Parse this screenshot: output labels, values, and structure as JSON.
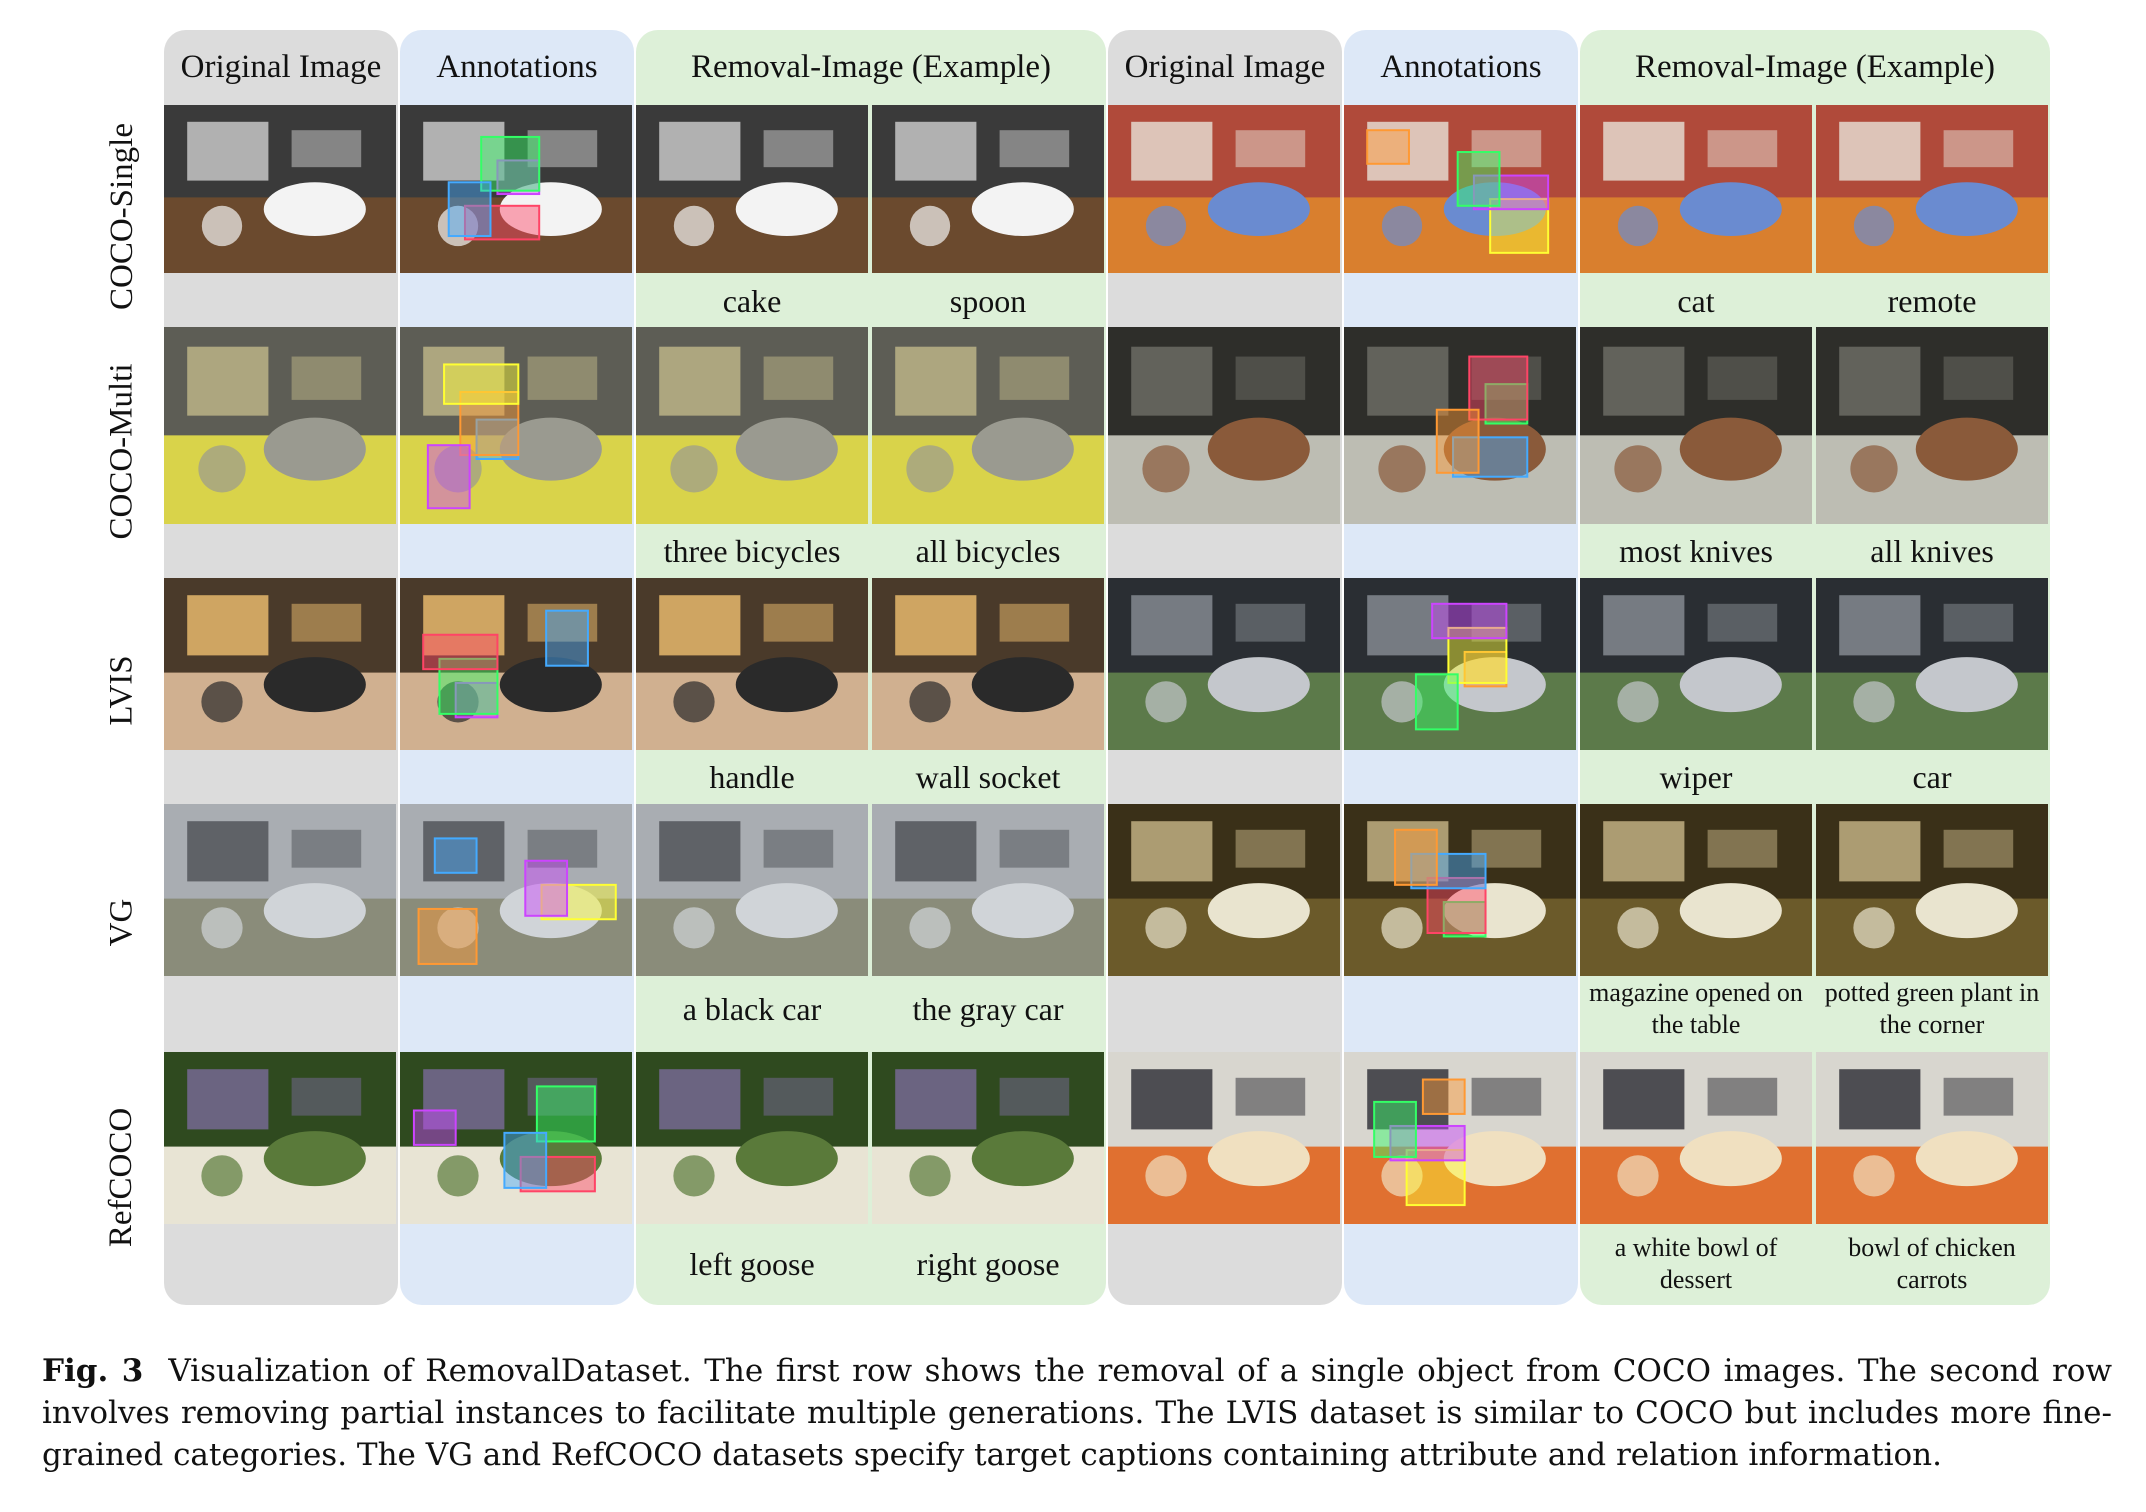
{
  "colors": {
    "original_bg": "#dcdcdc",
    "annotations_bg": "#dde8f7",
    "removal_bg": "#ddf0d8"
  },
  "headers": {
    "left": [
      "Original Image",
      "Annotations",
      "Removal-Image (Example)"
    ],
    "right": [
      "Original Image",
      "Annotations",
      "Removal-Image (Example)"
    ]
  },
  "rows": [
    {
      "label": "COCO-Single",
      "captions": [
        "cake",
        "spoon",
        "cat",
        "remote"
      ]
    },
    {
      "label": "COCO-Multi",
      "captions": [
        "three bicycles",
        "all bicycles",
        "most knives",
        "all knives"
      ]
    },
    {
      "label": "LVIS",
      "captions": [
        "handle",
        "wall socket",
        "wiper",
        "car"
      ]
    },
    {
      "label": "VG",
      "captions": [
        "a black car",
        "the gray car",
        "magazine opened on the table",
        "potted green plant in the corner"
      ]
    },
    {
      "label": "RefCOCO",
      "captions": [
        "left goose",
        "right goose",
        "a white bowl of dessert",
        "bowl of chicken carrots"
      ]
    }
  ],
  "figure_caption": {
    "label": "Fig. 3",
    "text": "Visualization of RemovalDataset. The first row shows the removal of a single object from COCO images. The second row involves removing partial instances to facilitate multiple generations. The LVIS dataset is similar to COCO but includes more fine-grained categories. The VG and RefCOCO datasets specify target captions containing attribute and relation information."
  }
}
